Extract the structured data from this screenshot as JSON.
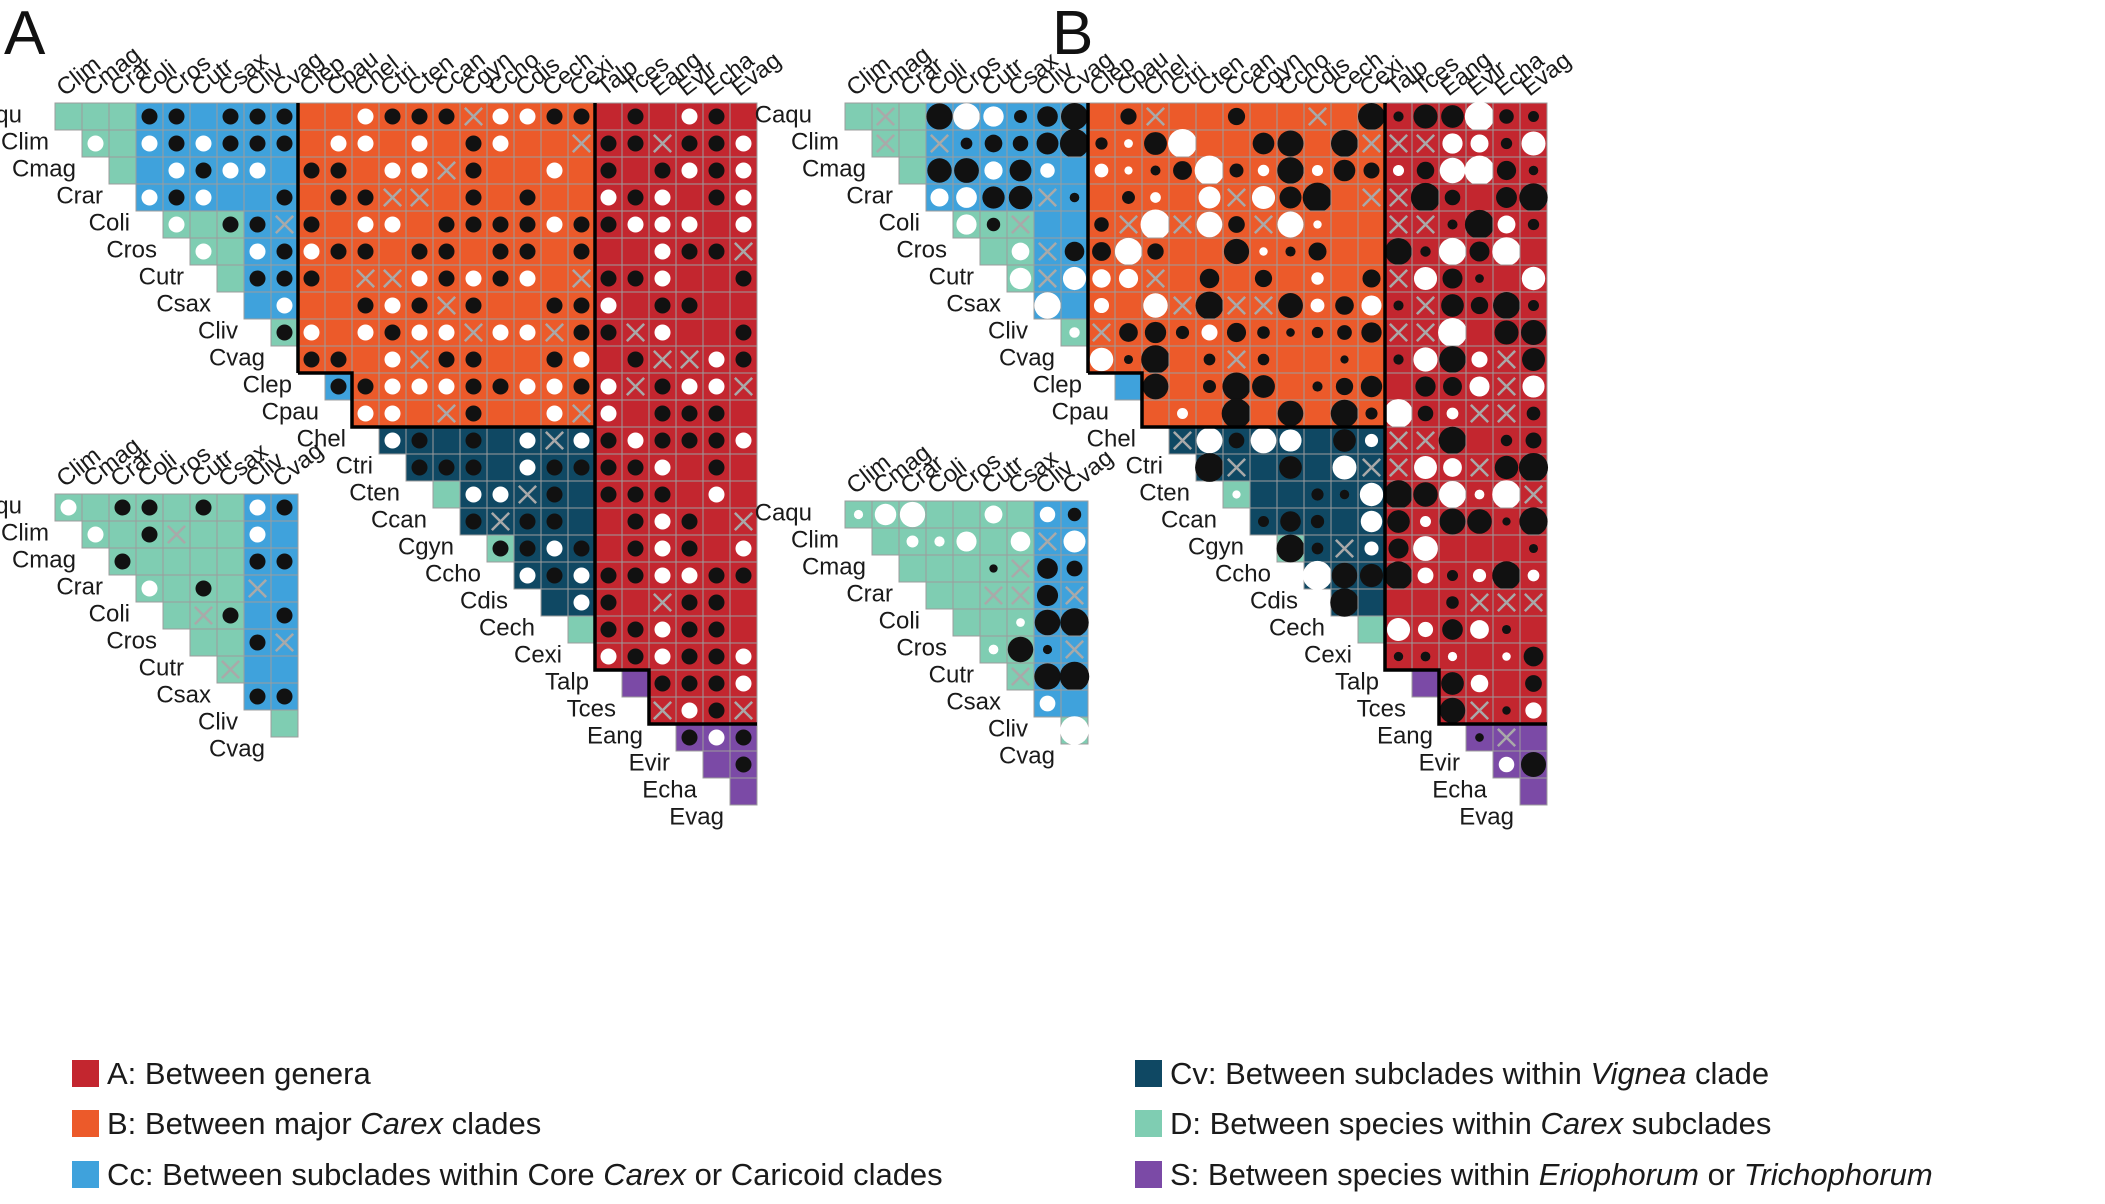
{
  "panels": [
    "A",
    "B"
  ],
  "colors": {
    "A": "#c3262f",
    "B": "#ec5a2a",
    "Cc": "#3fa2dc",
    "Cv": "#0f4863",
    "D": "#7fcdb2",
    "S": "#7b4aa6",
    "grid": "#9c9c9c",
    "dot_black": "#111111",
    "dot_white": "#ffffff",
    "cross": "#a9a9a9",
    "border": "#000000"
  },
  "chart_data": [
    {
      "type": "heatmap",
      "panel": "A",
      "title": "",
      "taxa": [
        "Caqu",
        "Clim",
        "Cmag",
        "Crar",
        "Coli",
        "Cros",
        "Cutr",
        "Csax",
        "Cliv",
        "Cvag",
        "Clep",
        "Cpau",
        "Chel",
        "Ctri",
        "Cten",
        "Ccan",
        "Cgyn",
        "Ccho",
        "Cdis",
        "Cech",
        "Cexi",
        "Talp",
        "Tces",
        "Eang",
        "Evir",
        "Echa",
        "Evag"
      ],
      "cell_marks": "per-cell mark: filled black dot, open white dot, grey cross, or empty; shown for every pairwise comparison",
      "inset": {
        "taxa": [
          "Caqu",
          "Clim",
          "Cmag",
          "Crar",
          "Coli",
          "Cros",
          "Cutr",
          "Csax",
          "Cliv",
          "Cvag"
        ]
      }
    },
    {
      "type": "heatmap",
      "panel": "B",
      "title": "",
      "taxa": [
        "Caqu",
        "Clim",
        "Cmag",
        "Crar",
        "Coli",
        "Cros",
        "Cutr",
        "Csax",
        "Cliv",
        "Cvag",
        "Clep",
        "Cpau",
        "Chel",
        "Ctri",
        "Cten",
        "Ccan",
        "Cgyn",
        "Ccho",
        "Cdis",
        "Cech",
        "Cexi",
        "Talp",
        "Tces",
        "Eang",
        "Evir",
        "Echa",
        "Evag"
      ],
      "cell_marks": "per-cell mark: black or white dot scaled by magnitude, grey cross, or empty",
      "inset": {
        "taxa": [
          "Caqu",
          "Clim",
          "Cmag",
          "Crar",
          "Coli",
          "Cros",
          "Cutr",
          "Csax",
          "Cliv",
          "Cvag"
        ]
      }
    }
  ],
  "legend": [
    {
      "key": "A",
      "prefix": "A: Between genera",
      "italic": "",
      "suffix": ""
    },
    {
      "key": "B",
      "prefix": "B: Between major ",
      "italic": "Carex",
      "suffix": " clades"
    },
    {
      "key": "Cc",
      "prefix": "Cc: Between subclades within Core ",
      "italic": "Carex",
      "suffix": " or Caricoid clades"
    },
    {
      "key": "Cv",
      "prefix": "Cv: Between subclades within ",
      "italic": "Vignea",
      "suffix": " clade"
    },
    {
      "key": "D",
      "prefix": "D: Between species within ",
      "italic": "Carex",
      "suffix": " subclades"
    },
    {
      "key": "S",
      "prefix": "S: Between species within ",
      "italic": "Eriophorum",
      "suffix": " or ",
      "italic2": "Trichophorum"
    }
  ]
}
